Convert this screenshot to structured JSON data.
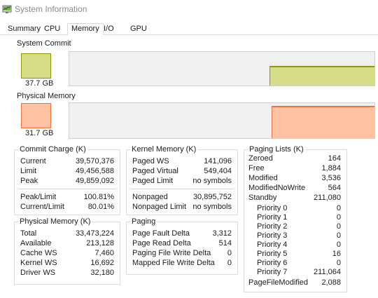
{
  "window": {
    "title": "System Information",
    "icon": "system-information-icon"
  },
  "tabs": [
    "Summary",
    "CPU",
    "Memory",
    "I/O",
    "GPU"
  ],
  "active_tab": "Memory",
  "system_commit": {
    "label": "System Commit",
    "value": "37.7 GB",
    "color": "#d6dd87",
    "border_color": "#8f9a00",
    "graph_level": 0.59,
    "graph_step_fraction": 0.657
  },
  "physical_memory_graph": {
    "label": "Physical Memory",
    "value": "31.7 GB",
    "color": "#ffc3a4",
    "border_color": "#e9733b",
    "graph_level": 0.92,
    "graph_step_fraction": 0.662
  },
  "commit_charge": {
    "title": "Commit Charge (K)",
    "rows": [
      {
        "label": "Current",
        "value": "39,570,376"
      },
      {
        "label": "Limit",
        "value": "49,456,588"
      },
      {
        "label": "Peak",
        "value": "49,859,092"
      }
    ],
    "rows2": [
      {
        "label": "Peak/Limit",
        "value": "100.81%"
      },
      {
        "label": "Current/Limit",
        "value": "80.01%"
      }
    ]
  },
  "kernel_memory": {
    "title": "Kernel Memory (K)",
    "rows": [
      {
        "label": "Paged WS",
        "value": "141,096"
      },
      {
        "label": "Paged Virtual",
        "value": "549,404"
      },
      {
        "label": "Paged Limit",
        "value": "no symbols"
      }
    ],
    "rows2": [
      {
        "label": "Nonpaged",
        "value": "30,895,752"
      },
      {
        "label": "Nonpaged Limit",
        "value": "no symbols"
      }
    ]
  },
  "physical_memory": {
    "title": "Physical Memory (K)",
    "rows": [
      {
        "label": "Total",
        "value": "33,473,224"
      },
      {
        "label": "Available",
        "value": "213,128"
      },
      {
        "label": "Cache WS",
        "value": "7,460"
      },
      {
        "label": "Kernel WS",
        "value": "16,692"
      },
      {
        "label": "Driver WS",
        "value": "32,180"
      }
    ]
  },
  "paging": {
    "title": "Paging",
    "rows": [
      {
        "label": "Page Fault Delta",
        "value": "3,312"
      },
      {
        "label": "Page Read Delta",
        "value": "514"
      },
      {
        "label": "Paging File Write Delta",
        "value": "0"
      },
      {
        "label": "Mapped File Write Delta",
        "value": "0"
      }
    ]
  },
  "paging_lists": {
    "title": "Paging Lists (K)",
    "rows": [
      {
        "label": "Zeroed",
        "value": "164"
      },
      {
        "label": "Free",
        "value": "1,884"
      },
      {
        "label": "Modified",
        "value": "3,536"
      },
      {
        "label": "ModifiedNoWrite",
        "value": "564"
      },
      {
        "label": "Standby",
        "value": "211,080"
      }
    ],
    "priorities": [
      {
        "label": "Priority 0",
        "value": "0"
      },
      {
        "label": "Priority 1",
        "value": "0"
      },
      {
        "label": "Priority 2",
        "value": "0"
      },
      {
        "label": "Priority 3",
        "value": "0"
      },
      {
        "label": "Priority 4",
        "value": "0"
      },
      {
        "label": "Priority 5",
        "value": "16"
      },
      {
        "label": "Priority 6",
        "value": "0"
      },
      {
        "label": "Priority 7",
        "value": "211,064"
      }
    ],
    "footer": {
      "label": "PageFileModified",
      "value": "2,088"
    }
  }
}
